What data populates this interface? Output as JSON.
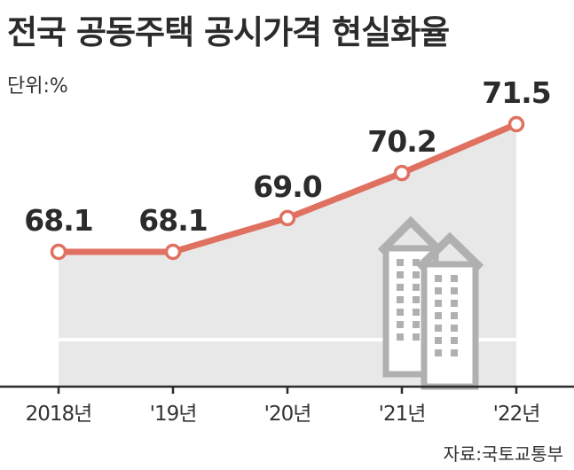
{
  "title": "전국 공동주택 공시가격 현실화율",
  "unit_label": "단위:%",
  "source": "자료:국토교통부",
  "colors": {
    "line": "#e0705f",
    "area": "#e8e8e8",
    "axis": "#2b2b2b",
    "icon": "#b0b0b0"
  },
  "chart_data": {
    "type": "area",
    "title": "전국 공동주택 공시가격 현실화율",
    "unit": "단위:%",
    "categories": [
      "2018년",
      "'19년",
      "'20년",
      "'21년",
      "'22년"
    ],
    "values": [
      68.1,
      68.1,
      69.0,
      70.2,
      71.5
    ],
    "value_labels": [
      "68.1",
      "68.1",
      "69.0",
      "70.2",
      "71.5"
    ],
    "grid": false,
    "decoration": "apartment-buildings-icon"
  }
}
